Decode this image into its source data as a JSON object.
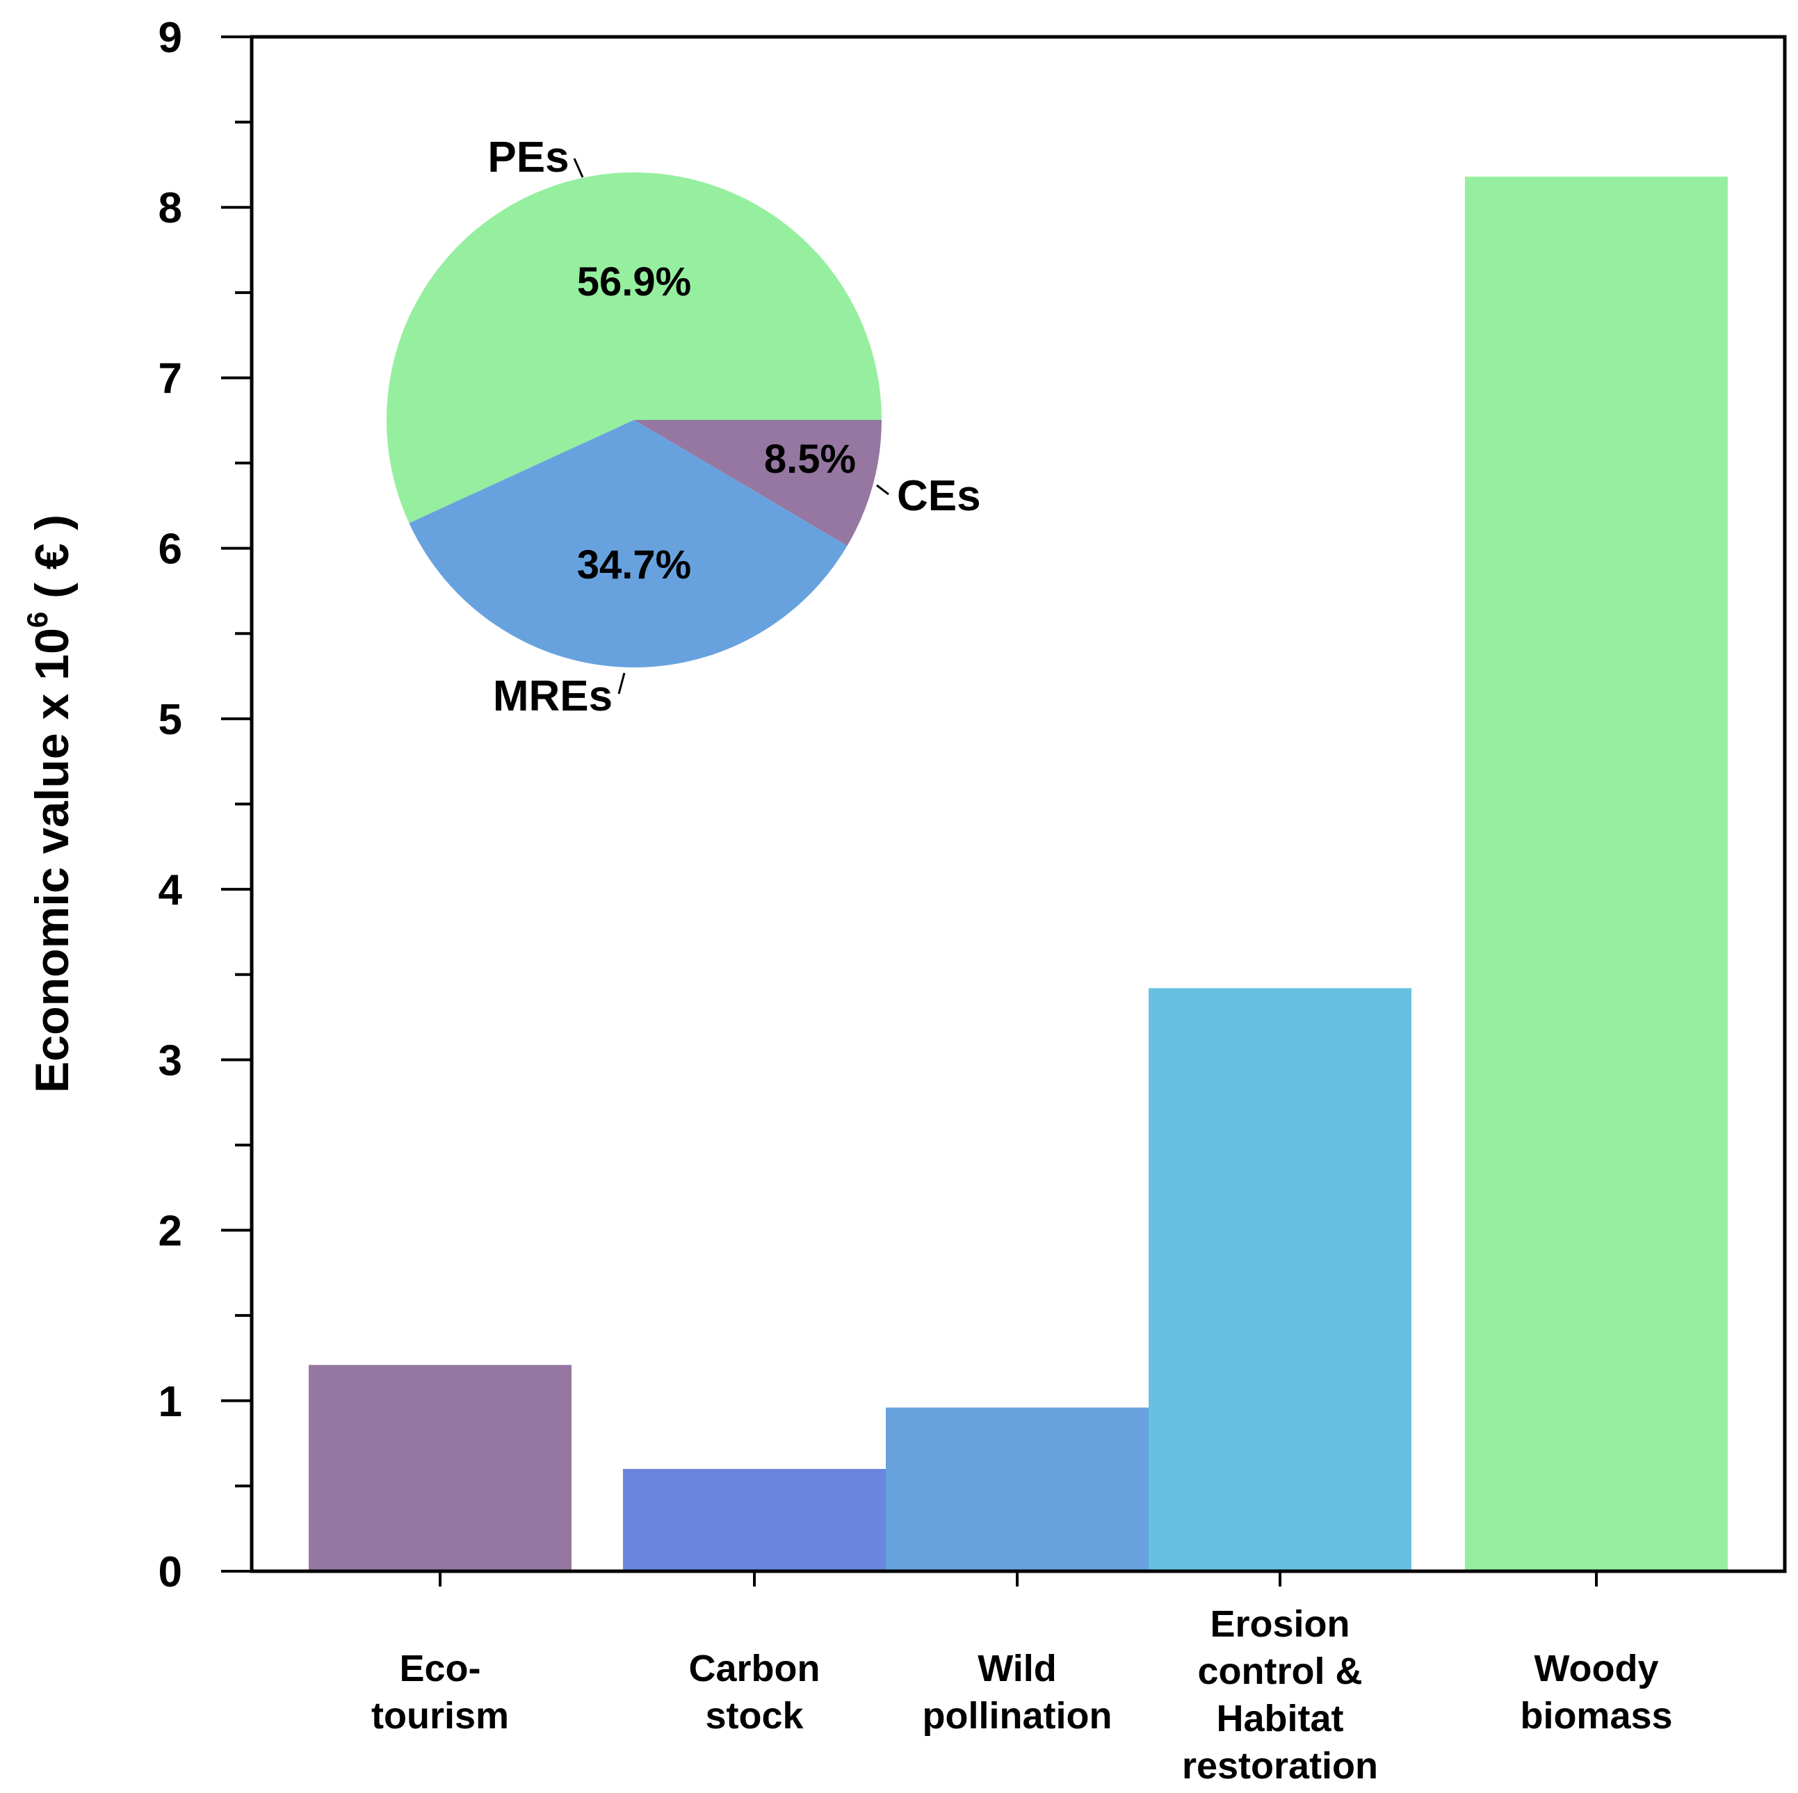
{
  "chart_data": [
    {
      "type": "bar",
      "categories": [
        [
          "Eco-",
          "tourism"
        ],
        [
          "Carbon",
          "stock"
        ],
        [
          "Wild",
          "pollination"
        ],
        [
          "Erosion",
          "control &",
          "Habitat",
          "restoration"
        ],
        [
          "Woody",
          "biomass"
        ]
      ],
      "values": [
        1.21,
        0.6,
        0.96,
        3.42,
        8.18
      ],
      "colors": [
        "#9577a1",
        "#6985dd",
        "#67a2df",
        "#67c0e1",
        "#95ef9f"
      ],
      "ylabel": "Economic value x 10",
      "ylabel_sup": "6",
      "ylabel_unit": " ( € )",
      "ylim": [
        0,
        9
      ],
      "yticks": [
        "0",
        "1",
        "2",
        "3",
        "4",
        "5",
        "6",
        "7",
        "8",
        "9"
      ],
      "grid": false
    },
    {
      "type": "pie",
      "slices": [
        {
          "label": "PEs",
          "value": 56.9,
          "pct_label": "56.9%",
          "color": "#95ef9f"
        },
        {
          "label": "MREs",
          "value": 34.7,
          "pct_label": "34.7%",
          "color": "#67a2df"
        },
        {
          "label": "CEs",
          "value": 8.5,
          "pct_label": "8.5%",
          "color": "#9577a1"
        }
      ]
    }
  ]
}
